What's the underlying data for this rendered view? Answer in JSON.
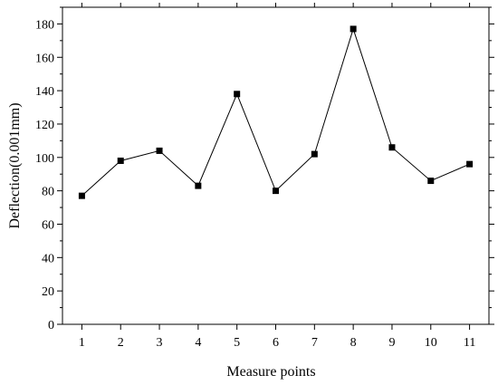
{
  "chart_data": {
    "type": "line",
    "xlabel": "Measure points",
    "ylabel": "Deflection(0.001mm)",
    "x": [
      1,
      2,
      3,
      4,
      5,
      6,
      7,
      8,
      9,
      10,
      11
    ],
    "series": [
      {
        "values": [
          77,
          98,
          104,
          83,
          138,
          80,
          102,
          177,
          106,
          86,
          96
        ]
      }
    ],
    "xlim": [
      0.5,
      11.5
    ],
    "ylim": [
      0,
      190
    ],
    "xticks": [
      1,
      2,
      3,
      4,
      5,
      6,
      7,
      8,
      9,
      10,
      11
    ],
    "yticks": [
      0,
      20,
      40,
      60,
      80,
      100,
      120,
      140,
      160,
      180
    ],
    "marker": "square",
    "grid": false,
    "legend": "none",
    "colors": {
      "line": "#000000",
      "marker": "#000000",
      "axis": "#000000"
    }
  }
}
